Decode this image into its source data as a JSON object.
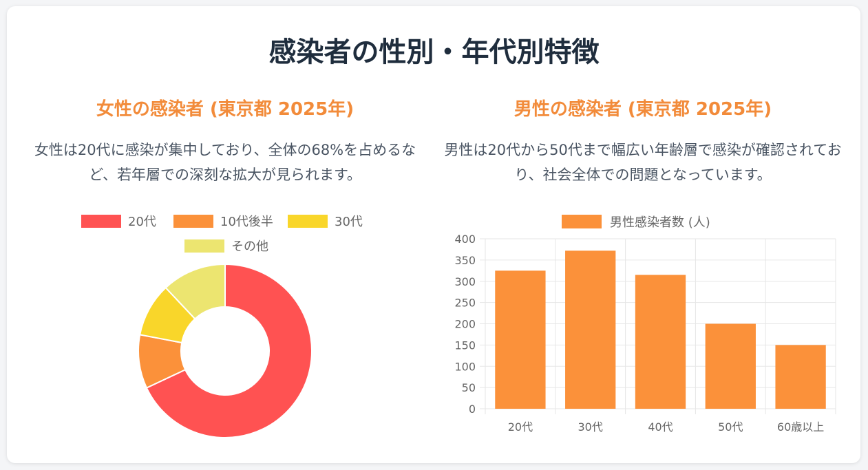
{
  "page": {
    "title": "感染者の性別・年代別特徴"
  },
  "female": {
    "title": "女性の感染者 (東京都 2025年)",
    "description": "女性は20代に感染が集中しており、全体の68%を占めるなど、若年層での深刻な拡大が見られます。"
  },
  "male": {
    "title": "男性の感染者 (東京都 2025年)",
    "description": "男性は20代から50代まで幅広い年齢層で感染が確認されており、社会全体での問題となっています。"
  },
  "chart_data": [
    {
      "type": "pie",
      "categories": [
        "20代",
        "10代後半",
        "30代",
        "その他"
      ],
      "values": [
        68,
        10,
        10,
        12
      ],
      "colors": [
        "#ff5252",
        "#fb913a",
        "#f9d62a",
        "#ece570"
      ],
      "legend_position": "top"
    },
    {
      "type": "bar",
      "categories": [
        "20代",
        "30代",
        "40代",
        "50代",
        "60歳以上"
      ],
      "series": [
        {
          "name": "男性感染者数 (人)",
          "values": [
            325,
            372,
            315,
            200,
            150
          ],
          "color": "#fb913a"
        }
      ],
      "ylim": [
        0,
        400
      ],
      "yticks": [
        0,
        50,
        100,
        150,
        200,
        250,
        300,
        350,
        400
      ],
      "grid": true,
      "legend_position": "top"
    }
  ]
}
